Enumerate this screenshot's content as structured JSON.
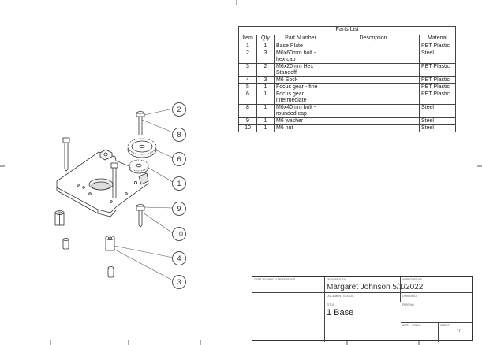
{
  "parts_list": {
    "caption": "Parts List",
    "headers": [
      "Item",
      "Qty",
      "Part Number",
      "Description",
      "Material"
    ],
    "rows": [
      {
        "item": "1",
        "qty": "1",
        "part_number": "Base Plate",
        "description": "",
        "material": "PET Plastic"
      },
      {
        "item": "2",
        "qty": "3",
        "part_number": "M6x60mm bolt - hex cap",
        "description": "",
        "material": "Steel"
      },
      {
        "item": "3",
        "qty": "2",
        "part_number": "M6x20mm Hex Standoff",
        "description": "",
        "material": "PET Plastic"
      },
      {
        "item": "4",
        "qty": "3",
        "part_number": "M6 Sock",
        "description": "",
        "material": "PET Plastic"
      },
      {
        "item": "5",
        "qty": "1",
        "part_number": "Focus gear - fine",
        "description": "",
        "material": "PET Plastic"
      },
      {
        "item": "6",
        "qty": "1",
        "part_number": "Focus gear intermediate",
        "description": "",
        "material": "PET Plastic"
      },
      {
        "item": "8",
        "qty": "1",
        "part_number": "M6x40mm bolt - rounded cap",
        "description": "",
        "material": "Steel"
      },
      {
        "item": "9",
        "qty": "1",
        "part_number": "M6 washer",
        "description": "",
        "material": "Steel"
      },
      {
        "item": "10",
        "qty": "1",
        "part_number": "M6 nut",
        "description": "",
        "material": "Steel"
      }
    ]
  },
  "balloons": [
    "2",
    "8",
    "6",
    "1",
    "9",
    "10",
    "4",
    "3"
  ],
  "title_block": {
    "author": "Margaret Johnson 5/1/2022",
    "title": "1 Base",
    "sheet": "1/1",
    "label_designed": "DESIGNED BY",
    "label_checked": "CHECKED BY",
    "label_approved": "APPROVED BY",
    "label_date": "DATE",
    "label_title": "TITLE",
    "label_dwg": "DWG NO",
    "label_size": "SIZE",
    "label_scale": "SCALE",
    "label_sheet": "SHEET",
    "label_dept": "DEPT",
    "label_tech": "TECHNICAL REFERENCE",
    "label_doc": "DOCUMENT STATUS",
    "label_owner": "OWNER ID"
  },
  "colors": {
    "line": "#333333",
    "balloon": "#555555"
  }
}
